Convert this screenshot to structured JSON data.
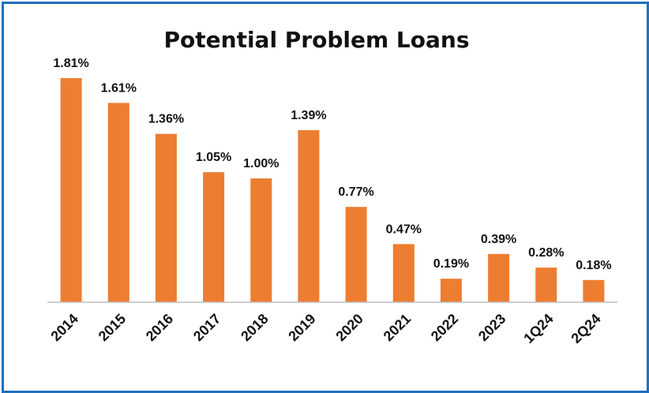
{
  "chart_data": {
    "type": "bar",
    "title": "Potential Problem Loans",
    "xlabel": "",
    "ylabel": "",
    "categories": [
      "2014",
      "2015",
      "2016",
      "2017",
      "2018",
      "2019",
      "2020",
      "2021",
      "2022",
      "2023",
      "1Q24",
      "2Q24"
    ],
    "values": [
      1.81,
      1.61,
      1.36,
      1.05,
      1.0,
      1.39,
      0.77,
      0.47,
      0.19,
      0.39,
      0.28,
      0.18
    ],
    "value_labels": [
      "1.81%",
      "1.61%",
      "1.36%",
      "1.05%",
      "1.00%",
      "1.39%",
      "0.77%",
      "0.47%",
      "0.19%",
      "0.39%",
      "0.28%",
      "0.18%"
    ],
    "ylim": [
      0,
      1.81
    ],
    "grid": false,
    "legend": "none",
    "colors": {
      "bar": "#ed7d31",
      "frame": "#1f6fbf",
      "axis": "#bfbfbf",
      "text": "#111111"
    }
  }
}
